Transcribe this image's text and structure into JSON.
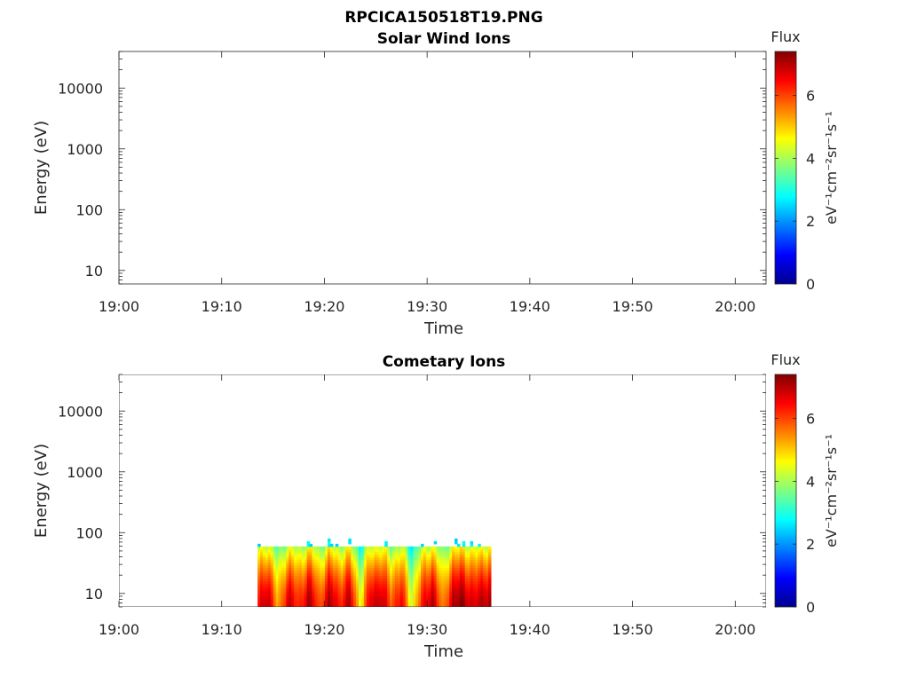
{
  "page_title": "RPCICA150518T19.PNG",
  "colors": {
    "axis": "#262626",
    "colormap": "jet",
    "background": "#ffffff"
  },
  "chart_data": [
    {
      "type": "heatmap",
      "title": "Solar Wind Ions",
      "xlabel": "Time",
      "ylabel": "Energy (eV)",
      "x_tick_labels": [
        "19:00",
        "19:10",
        "19:20",
        "19:30",
        "19:40",
        "19:50",
        "20:00"
      ],
      "x_ticks_minutes": [
        0,
        10,
        20,
        30,
        40,
        50,
        60
      ],
      "xlim_minutes_after_19_00": [
        0,
        63
      ],
      "y_tick_labels": [
        "10",
        "100",
        "1000",
        "10000"
      ],
      "y_ticks": [
        10,
        100,
        1000,
        10000
      ],
      "ylim": [
        6,
        40000
      ],
      "y_scale": "log",
      "colorbar": {
        "label": "Flux",
        "unit_label": "eV⁻¹cm⁻²sr⁻¹s⁻¹",
        "ticks": [
          "0",
          "2",
          "4",
          "6"
        ],
        "range": [
          0,
          7.4
        ]
      },
      "data_present": false,
      "segments": []
    },
    {
      "type": "heatmap",
      "title": "Cometary Ions",
      "xlabel": "Time",
      "ylabel": "Energy (eV)",
      "x_tick_labels": [
        "19:00",
        "19:10",
        "19:20",
        "19:30",
        "19:40",
        "19:50",
        "20:00"
      ],
      "x_ticks_minutes": [
        0,
        10,
        20,
        30,
        40,
        50,
        60
      ],
      "xlim_minutes_after_19_00": [
        0,
        63
      ],
      "y_tick_labels": [
        "10",
        "100",
        "1000",
        "10000"
      ],
      "y_ticks": [
        10,
        100,
        1000,
        10000
      ],
      "ylim": [
        6,
        40000
      ],
      "y_scale": "log",
      "colorbar": {
        "label": "Flux",
        "unit_label": "eV⁻¹cm⁻²sr⁻¹s⁻¹",
        "ticks": [
          "0",
          "2",
          "4",
          "6"
        ],
        "range": [
          0,
          7.4
        ]
      },
      "data_present": true,
      "data_time_range_minutes": [
        13.5,
        36.2
      ],
      "data_energy_range_eV": [
        6,
        80
      ],
      "flux_profile": [
        {
          "t": 13.5,
          "peak": 6.2
        },
        {
          "t": 14.5,
          "peak": 7.2
        },
        {
          "t": 15.5,
          "peak": 5.0
        },
        {
          "t": 16.5,
          "peak": 7.0
        },
        {
          "t": 17.5,
          "peak": 6.0
        },
        {
          "t": 18.5,
          "peak": 7.2
        },
        {
          "t": 19.5,
          "peak": 5.8
        },
        {
          "t": 20.5,
          "peak": 7.1
        },
        {
          "t": 21.5,
          "peak": 6.3
        },
        {
          "t": 22.5,
          "peak": 7.0
        },
        {
          "t": 23.5,
          "peak": 4.6
        },
        {
          "t": 24.5,
          "peak": 6.8
        },
        {
          "t": 25.5,
          "peak": 7.0
        },
        {
          "t": 26.5,
          "peak": 5.9
        },
        {
          "t": 27.5,
          "peak": 6.6
        },
        {
          "t": 28.5,
          "peak": 4.4
        },
        {
          "t": 29.5,
          "peak": 6.2
        },
        {
          "t": 30.5,
          "peak": 7.2
        },
        {
          "t": 31.5,
          "peak": 5.3
        },
        {
          "t": 32.5,
          "peak": 7.0
        },
        {
          "t": 33.5,
          "peak": 7.3
        },
        {
          "t": 34.5,
          "peak": 6.6
        },
        {
          "t": 35.5,
          "peak": 7.1
        }
      ]
    }
  ]
}
